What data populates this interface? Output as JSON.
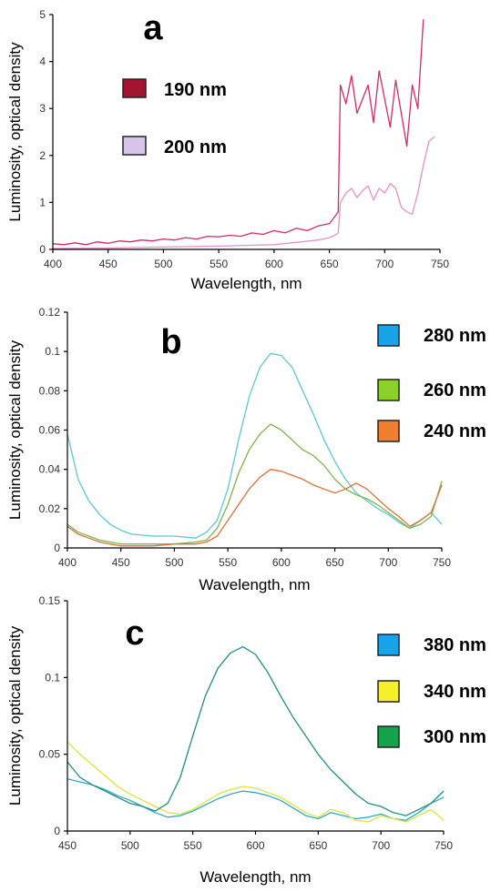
{
  "chart_data": [
    {
      "panel": "a",
      "type": "line",
      "xlabel": "Wavelength, nm",
      "ylabel": "Luminosity, optical density",
      "xlim": [
        400,
        750
      ],
      "ylim": [
        0,
        5
      ],
      "xticks": [
        "400",
        "450",
        "500",
        "550",
        "600",
        "650",
        "700",
        "750"
      ],
      "yticks": [
        "0",
        "1",
        "2",
        "3",
        "4",
        "5"
      ],
      "legend_position": "left",
      "series": [
        {
          "name": "190 nm",
          "swatch": "#a3142e",
          "color": "#d42a68",
          "x": [
            400,
            410,
            420,
            430,
            440,
            450,
            460,
            470,
            480,
            490,
            500,
            510,
            520,
            530,
            540,
            550,
            560,
            570,
            580,
            590,
            600,
            610,
            620,
            630,
            640,
            650,
            655,
            658,
            660,
            665,
            670,
            675,
            680,
            685,
            690,
            695,
            700,
            705,
            710,
            715,
            720,
            725,
            730,
            735
          ],
          "y": [
            0.12,
            0.1,
            0.14,
            0.1,
            0.16,
            0.13,
            0.18,
            0.16,
            0.2,
            0.18,
            0.22,
            0.2,
            0.25,
            0.22,
            0.28,
            0.27,
            0.3,
            0.28,
            0.35,
            0.32,
            0.4,
            0.35,
            0.45,
            0.4,
            0.5,
            0.55,
            0.7,
            0.8,
            3.5,
            3.1,
            3.7,
            2.9,
            3.2,
            3.5,
            2.7,
            3.8,
            3.2,
            2.6,
            3.6,
            2.9,
            2.2,
            3.5,
            3.0,
            4.9
          ]
        },
        {
          "name": "200 nm",
          "swatch": "#d8c6ea",
          "color": "#e391cb",
          "x": [
            400,
            450,
            500,
            550,
            600,
            620,
            640,
            650,
            655,
            658,
            660,
            665,
            670,
            675,
            680,
            685,
            690,
            695,
            700,
            705,
            710,
            715,
            720,
            725,
            730,
            735,
            740,
            745
          ],
          "y": [
            0.02,
            0.03,
            0.05,
            0.07,
            0.1,
            0.15,
            0.2,
            0.25,
            0.3,
            0.35,
            1.0,
            1.2,
            1.3,
            1.1,
            1.25,
            1.35,
            1.05,
            1.3,
            1.2,
            1.4,
            1.3,
            0.9,
            0.8,
            0.75,
            1.2,
            1.8,
            2.3,
            2.4
          ]
        }
      ]
    },
    {
      "panel": "b",
      "type": "line",
      "xlabel": "Wavelength, nm",
      "ylabel": "Luminosity, optical density",
      "xlim": [
        400,
        750
      ],
      "ylim": [
        0,
        0.12
      ],
      "xticks": [
        "400",
        "450",
        "500",
        "550",
        "600",
        "650",
        "700",
        "750"
      ],
      "yticks": [
        "0",
        "0.02",
        "0.04",
        "0.06",
        "0.08",
        "0.1",
        "0.12"
      ],
      "legend_position": "right",
      "series": [
        {
          "name": "280 nm",
          "swatch": "#1aa3e8",
          "color": "#5cc8d6",
          "x": [
            400,
            410,
            420,
            430,
            440,
            450,
            460,
            480,
            500,
            520,
            530,
            540,
            550,
            560,
            570,
            580,
            590,
            600,
            610,
            620,
            630,
            640,
            650,
            660,
            670,
            680,
            690,
            700,
            710,
            720,
            730,
            740,
            750
          ],
          "y": [
            0.058,
            0.035,
            0.024,
            0.017,
            0.012,
            0.009,
            0.007,
            0.006,
            0.006,
            0.005,
            0.008,
            0.014,
            0.03,
            0.055,
            0.077,
            0.092,
            0.099,
            0.098,
            0.092,
            0.08,
            0.068,
            0.055,
            0.044,
            0.035,
            0.028,
            0.024,
            0.02,
            0.017,
            0.013,
            0.01,
            0.014,
            0.018,
            0.012
          ]
        },
        {
          "name": "260 nm",
          "swatch": "#8bd12c",
          "color": "#7cb54a",
          "x": [
            400,
            410,
            420,
            430,
            440,
            450,
            460,
            480,
            500,
            520,
            530,
            540,
            550,
            560,
            570,
            580,
            590,
            600,
            610,
            620,
            630,
            640,
            650,
            660,
            670,
            680,
            690,
            700,
            710,
            720,
            730,
            740,
            750
          ],
          "y": [
            0.012,
            0.008,
            0.006,
            0.004,
            0.003,
            0.002,
            0.002,
            0.002,
            0.002,
            0.003,
            0.004,
            0.01,
            0.022,
            0.038,
            0.05,
            0.058,
            0.063,
            0.06,
            0.055,
            0.05,
            0.047,
            0.042,
            0.035,
            0.03,
            0.027,
            0.025,
            0.022,
            0.018,
            0.014,
            0.01,
            0.012,
            0.016,
            0.034
          ]
        },
        {
          "name": "240 nm",
          "swatch": "#f08030",
          "color": "#d8743a",
          "x": [
            400,
            410,
            420,
            430,
            440,
            450,
            460,
            480,
            500,
            520,
            530,
            540,
            550,
            560,
            570,
            580,
            590,
            600,
            610,
            620,
            630,
            640,
            650,
            660,
            670,
            680,
            690,
            700,
            710,
            720,
            730,
            740,
            750
          ],
          "y": [
            0.011,
            0.007,
            0.005,
            0.003,
            0.002,
            0.001,
            0.001,
            0.001,
            0.002,
            0.002,
            0.003,
            0.006,
            0.014,
            0.022,
            0.03,
            0.036,
            0.04,
            0.039,
            0.037,
            0.035,
            0.032,
            0.03,
            0.028,
            0.03,
            0.033,
            0.03,
            0.025,
            0.02,
            0.016,
            0.011,
            0.014,
            0.018,
            0.032
          ]
        }
      ]
    },
    {
      "panel": "c",
      "type": "line",
      "xlabel": "Wavelength, nm",
      "ylabel": "Luminosity, optical density",
      "xlim": [
        450,
        750
      ],
      "ylim": [
        0,
        0.15
      ],
      "xticks": [
        "450",
        "500",
        "550",
        "600",
        "650",
        "700",
        "750"
      ],
      "yticks": [
        "0",
        "0.05",
        "0.1",
        "0.15"
      ],
      "legend_position": "right",
      "series": [
        {
          "name": "380 nm",
          "swatch": "#1aa3e8",
          "color": "#2aaac8",
          "x": [
            450,
            460,
            470,
            480,
            490,
            500,
            510,
            520,
            530,
            540,
            550,
            560,
            570,
            580,
            590,
            600,
            610,
            620,
            630,
            640,
            650,
            660,
            670,
            680,
            690,
            700,
            710,
            720,
            730,
            740,
            750
          ],
          "y": [
            0.034,
            0.032,
            0.03,
            0.027,
            0.023,
            0.02,
            0.016,
            0.012,
            0.009,
            0.01,
            0.013,
            0.017,
            0.021,
            0.024,
            0.026,
            0.025,
            0.023,
            0.02,
            0.015,
            0.01,
            0.008,
            0.012,
            0.01,
            0.008,
            0.009,
            0.011,
            0.008,
            0.007,
            0.012,
            0.018,
            0.022
          ]
        },
        {
          "name": "340 nm",
          "swatch": "#f5f02a",
          "color": "#e2e23a",
          "x": [
            450,
            460,
            470,
            480,
            490,
            500,
            510,
            520,
            530,
            540,
            550,
            560,
            570,
            580,
            590,
            600,
            610,
            620,
            630,
            640,
            650,
            660,
            670,
            680,
            690,
            700,
            710,
            720,
            730,
            740,
            750
          ],
          "y": [
            0.058,
            0.05,
            0.043,
            0.036,
            0.029,
            0.024,
            0.02,
            0.016,
            0.012,
            0.011,
            0.014,
            0.019,
            0.024,
            0.027,
            0.029,
            0.028,
            0.025,
            0.022,
            0.017,
            0.012,
            0.009,
            0.014,
            0.012,
            0.007,
            0.006,
            0.01,
            0.008,
            0.006,
            0.01,
            0.014,
            0.007
          ]
        },
        {
          "name": "300 nm",
          "swatch": "#14a24a",
          "color": "#1f8f84",
          "x": [
            450,
            460,
            470,
            480,
            490,
            500,
            510,
            520,
            530,
            540,
            550,
            560,
            570,
            580,
            590,
            600,
            610,
            620,
            630,
            640,
            650,
            660,
            670,
            680,
            690,
            700,
            710,
            720,
            730,
            740,
            750
          ],
          "y": [
            0.045,
            0.035,
            0.03,
            0.026,
            0.022,
            0.018,
            0.016,
            0.013,
            0.018,
            0.035,
            0.062,
            0.088,
            0.106,
            0.116,
            0.12,
            0.115,
            0.103,
            0.088,
            0.074,
            0.062,
            0.05,
            0.04,
            0.032,
            0.024,
            0.018,
            0.016,
            0.012,
            0.01,
            0.014,
            0.018,
            0.026
          ]
        }
      ]
    }
  ]
}
